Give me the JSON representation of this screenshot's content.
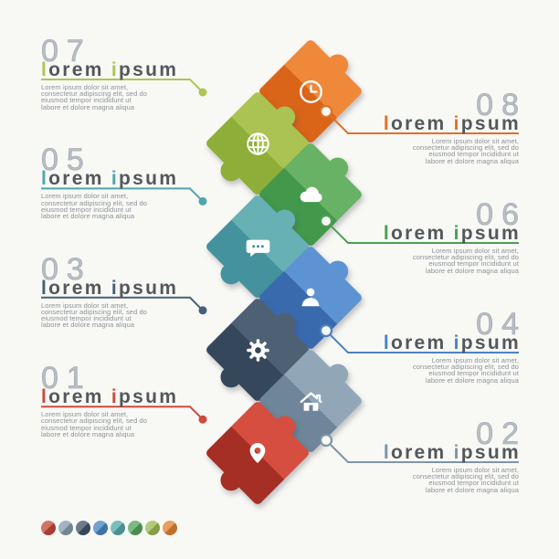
{
  "canvas": {
    "background": "#f8f8f5"
  },
  "items": [
    {
      "number": "07",
      "side": "left",
      "row": 0,
      "accent": "#aec455",
      "title": "lorem ipsum",
      "title_parts": {
        "a1": "l",
        "rest1": "orem ",
        "a2": "i",
        "rest2": "psum"
      },
      "body": "Lorem ipsum dolor sit amet,\nconsectetur adipiscing elit, sed do\neiusmod tempor incididunt ut\nlabore et dolore magna aliqua"
    },
    {
      "number": "08",
      "side": "right",
      "row": 0,
      "accent": "#e2702a",
      "title": "lorem ipsum",
      "title_parts": {
        "a1": "l",
        "rest1": "orem ",
        "a2": "i",
        "rest2": "psum"
      },
      "body": "Lorem ipsum dolor sit amet,\nconsectetur adipiscing elit, sed do\neiusmod tempor incididunt ut\nlabore et dolore magna aliqua"
    },
    {
      "number": "05",
      "side": "left",
      "row": 1,
      "accent": "#4fa6ad",
      "title": "lorem ipsum",
      "title_parts": {
        "a1": "l",
        "rest1": "orem ",
        "a2": "i",
        "rest2": "psum"
      },
      "body": "Lorem ipsum dolor sit amet,\nconsectetur adipiscing elit, sed do\neiusmod tempor incididunt ut\nlabore et dolore magna aliqua"
    },
    {
      "number": "06",
      "side": "right",
      "row": 1,
      "accent": "#4e9e54",
      "title": "lorem ipsum",
      "title_parts": {
        "a1": "l",
        "rest1": "orem ",
        "a2": "i",
        "rest2": "psum"
      },
      "body": "Lorem ipsum dolor sit amet,\nconsectetur adipiscing elit, sed do\neiusmod tempor incididunt ut\nlabore et dolore magna aliqua"
    },
    {
      "number": "03",
      "side": "left",
      "row": 2,
      "accent": "#465f78",
      "title": "lorem ipsum",
      "title_parts": {
        "a1": "l",
        "rest1": "orem ",
        "a2": "i",
        "rest2": "psum"
      },
      "body": "Lorem ipsum dolor sit amet,\nconsectetur adipiscing elit, sed do\neiusmod tempor incididunt ut\nlabore et dolore magna aliqua"
    },
    {
      "number": "04",
      "side": "right",
      "row": 2,
      "accent": "#4b82c3",
      "title": "lorem ipsum",
      "title_parts": {
        "a1": "l",
        "rest1": "orem ",
        "a2": "i",
        "rest2": "psum"
      },
      "body": "Lorem ipsum dolor sit amet,\nconsectetur adipiscing elit, sed do\neiusmod tempor incididunt ut\nlabore et dolore magna aliqua"
    },
    {
      "number": "01",
      "side": "left",
      "row": 3,
      "accent": "#cd4a3c",
      "title": "lorem ipsum",
      "title_parts": {
        "a1": "l",
        "rest1": "orem ",
        "a2": "i",
        "rest2": "psum"
      },
      "body": "Lorem ipsum dolor sit amet,\nconsectetur adipiscing elit, sed do\neiusmod tempor incididunt ut\nlabore et dolore magna aliqua"
    },
    {
      "number": "02",
      "side": "right",
      "row": 3,
      "accent": "#7e95a8",
      "title": "lorem ipsum",
      "title_parts": {
        "a1": "l",
        "rest1": "orem ",
        "a2": "i",
        "rest2": "psum"
      },
      "body": "Lorem ipsum dolor sit amet,\nconsectetur adipiscing elit, sed do\neiusmod tempor incididunt ut\nlabore et dolore magna aliqua"
    }
  ],
  "puzzle_pieces": [
    {
      "icon": "clock-icon",
      "light": "#f0883a",
      "dark": "#da6418",
      "links_item": "08"
    },
    {
      "icon": "globe-icon",
      "light": "#abc353",
      "dark": "#8fae39",
      "links_item": "07"
    },
    {
      "icon": "cloud-icon",
      "light": "#67b264",
      "dark": "#43984c",
      "links_item": "06"
    },
    {
      "icon": "chat-icon",
      "light": "#67b1b5",
      "dark": "#43929d",
      "links_item": "05"
    },
    {
      "icon": "person-icon",
      "light": "#5d93d2",
      "dark": "#3a6aae",
      "links_item": "04"
    },
    {
      "icon": "gear-icon",
      "light": "#4e6174",
      "dark": "#35485b",
      "links_item": "03"
    },
    {
      "icon": "home-icon",
      "light": "#91a7b8",
      "dark": "#6f8599",
      "links_item": "02"
    },
    {
      "icon": "pin-icon",
      "light": "#d54e3f",
      "dark": "#a52f24",
      "links_item": "01"
    }
  ],
  "legend_dots": [
    {
      "color": "#c64a3e"
    },
    {
      "color": "#889fb0"
    },
    {
      "color": "#41566b"
    },
    {
      "color": "#4c88c6"
    },
    {
      "color": "#57acab"
    },
    {
      "color": "#57a75e"
    },
    {
      "color": "#9dbb54"
    },
    {
      "color": "#e38434"
    }
  ]
}
